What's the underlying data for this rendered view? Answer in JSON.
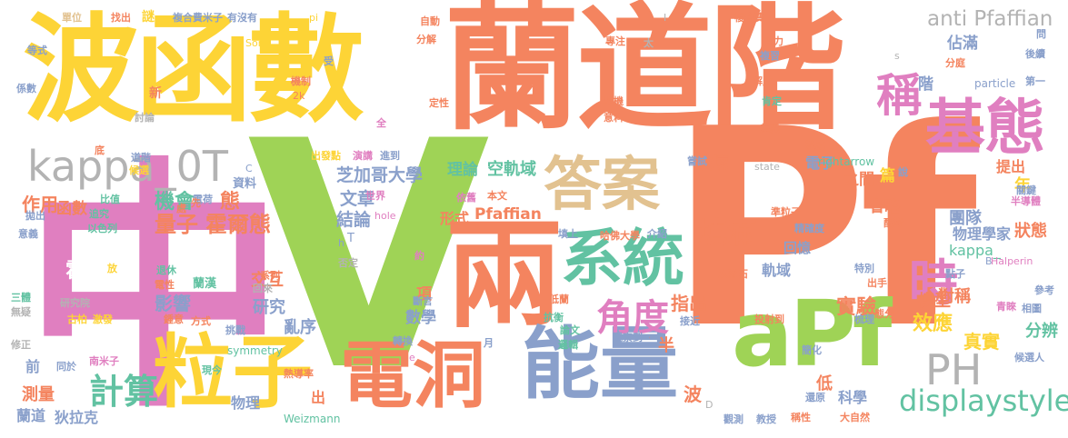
{
  "colors": {
    "background": "#ffffff",
    "orange": "#f4845f",
    "yellow": "#fdd436",
    "pink": "#e07fc0",
    "green": "#9fd356",
    "teal": "#62c2a2",
    "blue": "#8aa0cb",
    "tan": "#e2c290",
    "gray": "#b3b3b3"
  },
  "words": {
    "bo_han_shu": "波函數",
    "lan_dao_jie": "蘭道階",
    "zhong": "中",
    "v": "V",
    "pf": "Pf",
    "liang": "兩",
    "apf": "aPf",
    "jitai": "基態",
    "cheng": "稱",
    "kappa_0t": "kappa_0T",
    "daan": "答案",
    "xitong": "系統",
    "lizi": "粒子",
    "diandong": "電洞",
    "nengliang": "能量",
    "shi": "時",
    "ph": "PH",
    "displaystyle": "displaystyle",
    "jiaodu": "角度",
    "jisuan": "計算",
    "anti_pfaffian": "anti Pfaffian",
    "tianman": "填滿",
    "kongguiyu": "空軌域",
    "pfaffian": "Pfaffian",
    "huoer": "霍爾",
    "liangzi": "量子",
    "huoertai": "霍爾態",
    "zhijiage": "芝加哥大學",
    "wenzhang": "文章",
    "jielun": "結論",
    "jihui": "機會",
    "lilun": "理論",
    "pohuai": "破壞",
    "shiyan": "實驗",
    "xiaoying": "效應",
    "zhenshi": "真實",
    "fenbian": "分辨",
    "moxing": "模型",
    "duicheng": "對稱",
    "tuandui": "團隊",
    "wulixuejia": "物理學家",
    "zhuangtai": "狀態",
    "kappa_": "kappa_",
    "zhanman": "佔滿",
    "jie": "階",
    "shenglue": "省略",
    "zhijian": "之間",
    "pian": "篇",
    "tichu": "提出",
    "dianzi": "電子",
    "nian": "年",
    "huiyi": "回憶",
    "guiyu": "軌域",
    "yanjiu": "研究",
    "luanxu": "亂序",
    "yingxiang": "影響",
    "jiaohu": "交互",
    "zuoyong": "作用",
    "hanshu": "函數",
    "ziliao": "資料",
    "xingshi": "形式",
    "xiang": "項",
    "shuxue": "數學",
    "bo": "波",
    "zhichu": "指出",
    "ban": "半",
    "ban2": "半",
    "kexue": "科學",
    "di": "低",
    "wuli": "物理",
    "celiang": "測量",
    "landao": "蘭道",
    "dilake": "狄拉克",
    "qian": "前",
    "xin": "新",
    "tai": "態",
    "chu": "出",
    "chenggong": "成功",
    "hafo": "哈佛大學",
    "yilai": "依舊",
    "shijie": "世界",
    "hole": "hole",
    "weizmann": "Weizmann",
    "symmetry": "symmetry",
    "rightarrow": "rightarrow",
    "state": "state",
    "particle": "particle",
    "halperin": "Halperin",
    "son": "Son",
    "pi": "pi",
    "k2": "2k",
    "jiedeng": "解成",
    "kending": "肯定",
    "chayi": "差異",
    "fuxi": "複習",
    "qiangli": "強力",
    "fenting": "分庭",
    "houji": "後續",
    "diyi": "第一",
    "danwei": "單位",
    "zhaochu": "找出",
    "mi": "謎",
    "fuhefeimizi": "複合費米子",
    "youmeiyou": "有沒有",
    "fuhefei": "複合費",
    "zidong": "自動",
    "zhuanzhu": "專注",
    "fenjie": "分解",
    "dingxing": "定性",
    "qiji": "契機",
    "yike": "意料",
    "dengshi": "等式",
    "xishu": "係數",
    "taolun": "討論",
    "di2": "底",
    "houxuan": "候選",
    "paochu": "拋出",
    "yiyi": "意義",
    "bizhi": "比值",
    "zhuizong": "追究",
    "yisilie": "以色列",
    "dianhe": "電荷",
    "tuixiu": "退休",
    "dianxing": "電性",
    "lanhan": "蘭漢",
    "guba": "古柏",
    "jili": "激發",
    "zhongyi": "鍾意",
    "fangshi": "方式",
    "santi": "三體",
    "wuyi": "無疑",
    "xiuzheng": "修正",
    "tongyu": "同於",
    "nanmizi": "南米子",
    "jiuxiang": "研究院",
    "fang": "放",
    "xianjin": "先",
    "chu2": "處",
    "tiaozhan": "挑戰",
    "xiandai": "現今",
    "xilie": "系列",
    "huilai": "回來",
    "fouding": "否定",
    "yue": "約",
    "duanyan": "斷言",
    "dilan": "低蘭",
    "kangjie": "抗衡",
    "lunwen": "論文",
    "luoji": "邏輯",
    "guancha": "觀察到",
    "zhuanhuan": "轉換",
    "rudao": "熱導率",
    "jiejin": "接近",
    "yue2": "月",
    "touyingdao": "投射到",
    "jianhua": "簡化",
    "shuiluoshi": "水落石",
    "tebie": "特別",
    "chushou": "出手",
    "zhunlizi": "準粒子",
    "jingquedu": "精確度",
    "peidui": "配對",
    "bandaoti": "半導體",
    "guanjian": "關鍵",
    "dianzi2": "點子",
    "canshu": "參考",
    "qingshi": "青睞",
    "xiangtu": "相圖",
    "houxuanren": "候選人",
    "shuli": "梳理",
    "taifen": "態分",
    "zhuangzhi": "主題",
    "guanche": "觀測",
    "jiaoshou": "教授",
    "chengxing": "稱性",
    "daziran": "大自然",
    "huanjie": "還原",
    "tianshang": "填上",
    "jieshao": "介紹",
    "changshi": "嘗試",
    "huancheng": "換成",
    "shuo": "說",
    "jinxing": "進到",
    "yanjiang": "演講",
    "chufadian": "出發點",
    "daodiji": "道階",
    "jizhi": "機制",
    "shou": "受",
    "quan": "全",
    "benwen": "本文",
    "taiji": "太",
    "wen": "問",
    "jiyi": "C",
    "h": "h",
    "t": "T",
    "s": "s",
    "b": "B",
    "d": "D",
    "e": "e",
    "i": "I"
  }
}
